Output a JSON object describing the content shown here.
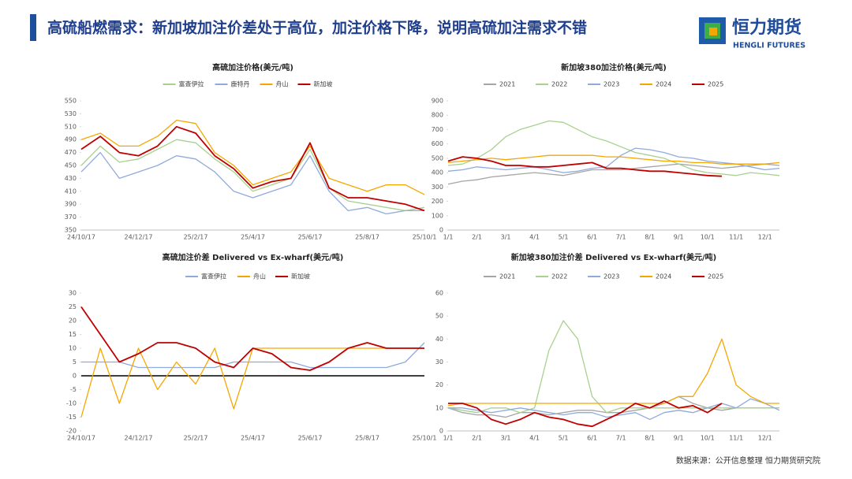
{
  "header": {
    "title": "高硫船燃需求：新加坡加注价差处于高位，加注价格下降，说明高硫加注需求不错",
    "logo_cn": "恒力期货",
    "logo_en": "HENGLI FUTURES"
  },
  "footer": {
    "source": "数据来源：公开信息整理 恒力期货研究院"
  },
  "chart_data": [
    {
      "type": "line",
      "title": "高硫加注价格(美元/吨)",
      "categories": [
        "24/10/17",
        null,
        null,
        "24/12/17",
        null,
        null,
        "25/2/17",
        null,
        null,
        "25/4/17",
        null,
        null,
        "25/6/17",
        null,
        null,
        "25/8/17",
        null,
        null,
        "25/10/1"
      ],
      "ylim": [
        350,
        550
      ],
      "yticks": [
        350,
        370,
        390,
        410,
        430,
        450,
        470,
        490,
        510,
        530,
        550
      ],
      "series": [
        {
          "name": "富查伊拉",
          "color": "#a9d18e",
          "values": [
            450,
            480,
            455,
            460,
            475,
            490,
            485,
            460,
            440,
            410,
            420,
            430,
            475,
            415,
            395,
            390,
            385,
            380,
            385
          ]
        },
        {
          "name": "鹿特丹",
          "color": "#8faadc",
          "values": [
            440,
            470,
            430,
            440,
            450,
            465,
            460,
            440,
            410,
            400,
            410,
            420,
            465,
            410,
            380,
            385,
            375,
            380,
            380
          ]
        },
        {
          "name": "舟山",
          "color": "#f5a700",
          "values": [
            490,
            500,
            480,
            480,
            495,
            520,
            515,
            470,
            450,
            420,
            430,
            440,
            480,
            430,
            420,
            410,
            420,
            420,
            405
          ]
        },
        {
          "name": "新加坡",
          "color": "#c00000",
          "values": [
            475,
            495,
            470,
            465,
            480,
            510,
            500,
            465,
            445,
            415,
            425,
            430,
            485,
            415,
            400,
            400,
            395,
            390,
            380
          ]
        }
      ]
    },
    {
      "type": "line",
      "title": "新加坡380加注价格(美元/吨)",
      "categories": [
        "1/1",
        null,
        "2/1",
        null,
        "3/1",
        null,
        "4/1",
        null,
        "5/1",
        null,
        "6/1",
        null,
        "7/1",
        null,
        "8/1",
        null,
        "9/1",
        null,
        "10/1",
        null,
        "11/1",
        null,
        "12/1",
        null
      ],
      "ylim": [
        0,
        900
      ],
      "yticks": [
        0,
        100,
        200,
        300,
        400,
        500,
        600,
        700,
        800,
        900
      ],
      "series": [
        {
          "name": "2021",
          "color": "#a5a5a5",
          "values": [
            320,
            340,
            350,
            370,
            380,
            390,
            400,
            390,
            380,
            400,
            420,
            420,
            420,
            430,
            440,
            450,
            460,
            450,
            440,
            430,
            440,
            450,
            460,
            450
          ]
        },
        {
          "name": "2022",
          "color": "#a9d18e",
          "values": [
            450,
            460,
            500,
            560,
            650,
            700,
            730,
            760,
            750,
            700,
            650,
            620,
            580,
            540,
            520,
            500,
            460,
            420,
            400,
            390,
            380,
            400,
            390,
            380
          ]
        },
        {
          "name": "2023",
          "color": "#8faadc",
          "values": [
            410,
            420,
            440,
            430,
            420,
            430,
            440,
            420,
            400,
            410,
            430,
            440,
            520,
            570,
            560,
            540,
            510,
            500,
            480,
            470,
            460,
            440,
            420,
            430
          ]
        },
        {
          "name": "2024",
          "color": "#f5a700",
          "values": [
            470,
            480,
            490,
            500,
            490,
            500,
            510,
            520,
            520,
            520,
            520,
            510,
            510,
            500,
            490,
            480,
            480,
            470,
            470,
            460,
            460,
            460,
            460,
            470
          ]
        },
        {
          "name": "2025",
          "color": "#c00000",
          "values": [
            480,
            510,
            500,
            480,
            450,
            450,
            440,
            440,
            450,
            460,
            470,
            430,
            430,
            420,
            410,
            410,
            400,
            390,
            380,
            375,
            null,
            null,
            null,
            null
          ]
        }
      ]
    },
    {
      "type": "line",
      "title": "高硫加注价差 Delivered vs Ex-wharf(美元/吨)",
      "categories": [
        "24/10/17",
        null,
        null,
        "24/12/17",
        null,
        null,
        "25/2/17",
        null,
        null,
        "25/4/17",
        null,
        null,
        "25/6/17",
        null,
        null,
        "25/8/17",
        null,
        null,
        "25/10/1"
      ],
      "ylim": [
        -20,
        30
      ],
      "yticks": [
        -20,
        -15,
        -10,
        -5,
        0,
        5,
        10,
        15,
        20,
        25,
        30
      ],
      "series": [
        {
          "name": "富查伊拉",
          "color": "#8faadc",
          "values": [
            5,
            5,
            5,
            3,
            3,
            3,
            3,
            3,
            5,
            5,
            5,
            5,
            3,
            3,
            3,
            3,
            3,
            5,
            12
          ]
        },
        {
          "name": "舟山",
          "color": "#f5a700",
          "values": [
            -15,
            10,
            -10,
            10,
            -5,
            5,
            -3,
            10,
            -12,
            10,
            10,
            10,
            10,
            10,
            10,
            10,
            10,
            10,
            10
          ]
        },
        {
          "name": "新加坡",
          "color": "#c00000",
          "values": [
            25,
            15,
            5,
            8,
            12,
            12,
            10,
            5,
            3,
            10,
            8,
            3,
            2,
            5,
            10,
            12,
            10,
            10,
            10
          ]
        }
      ]
    },
    {
      "type": "line",
      "title": "新加坡380加注价差 Delivered vs Ex-wharf(美元/吨)",
      "categories": [
        "1/1",
        null,
        "2/1",
        null,
        "3/1",
        null,
        "4/1",
        null,
        "5/1",
        null,
        "6/1",
        null,
        "7/1",
        null,
        "8/1",
        null,
        "9/1",
        null,
        "10/1",
        null,
        "11/1",
        null,
        "12/1",
        null
      ],
      "ylim": [
        0,
        60
      ],
      "yticks": [
        0,
        10,
        20,
        30,
        40,
        50,
        60
      ],
      "series": [
        {
          "name": "2021",
          "color": "#a5a5a5",
          "values": [
            10,
            8,
            7,
            7,
            6,
            8,
            8,
            7,
            8,
            9,
            9,
            8,
            8,
            9,
            10,
            12,
            15,
            12,
            10,
            9,
            10,
            10,
            10,
            10
          ]
        },
        {
          "name": "2022",
          "color": "#a9d18e",
          "values": [
            10,
            9,
            8,
            10,
            10,
            8,
            10,
            35,
            48,
            40,
            15,
            8,
            10,
            10,
            10,
            10,
            10,
            10,
            10,
            10,
            10,
            10,
            10,
            10
          ]
        },
        {
          "name": "2023",
          "color": "#8faadc",
          "values": [
            10,
            10,
            9,
            8,
            9,
            10,
            9,
            8,
            7,
            8,
            8,
            6,
            7,
            8,
            5,
            8,
            9,
            8,
            10,
            12,
            10,
            14,
            12,
            9
          ]
        },
        {
          "name": "2024",
          "color": "#f5a700",
          "values": [
            11,
            12,
            12,
            12,
            12,
            12,
            12,
            12,
            12,
            12,
            12,
            12,
            12,
            12,
            12,
            12,
            15,
            15,
            25,
            40,
            20,
            15,
            12,
            12
          ]
        },
        {
          "name": "2025",
          "color": "#c00000",
          "values": [
            12,
            12,
            10,
            5,
            3,
            5,
            8,
            6,
            5,
            3,
            2,
            5,
            8,
            12,
            10,
            13,
            10,
            11,
            8,
            12,
            null,
            null,
            null,
            null
          ]
        }
      ]
    }
  ]
}
